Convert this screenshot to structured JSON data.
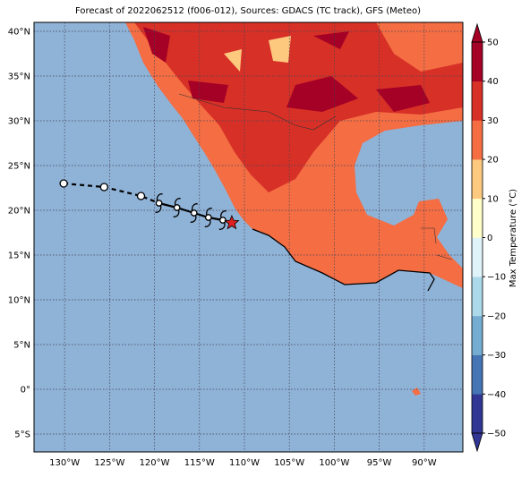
{
  "chart_data": {
    "type": "map",
    "title": "Forecast of 2022062512 (f006-012), Sources: GDACS (TC track), GFS (Meteo)",
    "xlim": [
      -133.4,
      -85.7
    ],
    "ylim": [
      -7,
      41
    ],
    "xticks": [
      {
        "value": -130,
        "label": "130°W"
      },
      {
        "value": -125,
        "label": "125°W"
      },
      {
        "value": -120,
        "label": "120°W"
      },
      {
        "value": -115,
        "label": "115°W"
      },
      {
        "value": -110,
        "label": "110°W"
      },
      {
        "value": -105,
        "label": "105°W"
      },
      {
        "value": -100,
        "label": "100°W"
      },
      {
        "value": -95,
        "label": "95°W"
      },
      {
        "value": -90,
        "label": "90°W"
      }
    ],
    "yticks": [
      {
        "value": 40,
        "label": "40°N"
      },
      {
        "value": 35,
        "label": "35°N"
      },
      {
        "value": 30,
        "label": "30°N"
      },
      {
        "value": 25,
        "label": "25°N"
      },
      {
        "value": 20,
        "label": "20°N"
      },
      {
        "value": 15,
        "label": "15°N"
      },
      {
        "value": 10,
        "label": "10°N"
      },
      {
        "value": 5,
        "label": "5°N"
      },
      {
        "value": 0,
        "label": "0°"
      },
      {
        "value": -5,
        "label": "5°S"
      }
    ],
    "grid": true,
    "track": {
      "lon": [
        -130.1,
        -125.6,
        -121.5,
        -119.5,
        -117.5,
        -115.6,
        -114.0,
        -112.4,
        -111.4
      ],
      "lat": [
        23.0,
        22.6,
        21.6,
        20.8,
        20.3,
        19.7,
        19.2,
        18.9,
        18.6
      ],
      "markers": [
        "circle",
        "circle",
        "circle",
        "storm",
        "storm",
        "storm",
        "storm",
        "storm",
        "star"
      ]
    },
    "colorbar": {
      "label": "Max Temperature (°C)",
      "lim": [
        -50,
        50
      ],
      "ticks": [
        {
          "value": -50,
          "label": "−50"
        },
        {
          "value": -40,
          "label": "−40"
        },
        {
          "value": -30,
          "label": "−30"
        },
        {
          "value": -20,
          "label": "−20"
        },
        {
          "value": -10,
          "label": "−10"
        },
        0,
        10,
        20,
        30,
        40,
        50
      ],
      "colors": [
        "#313695",
        "#4575b4",
        "#74add1",
        "#abd9e9",
        "#e0f3f8",
        "#ffffcc",
        "#fdc97f",
        "#f46d43",
        "#d73027",
        "#a50026"
      ]
    }
  }
}
